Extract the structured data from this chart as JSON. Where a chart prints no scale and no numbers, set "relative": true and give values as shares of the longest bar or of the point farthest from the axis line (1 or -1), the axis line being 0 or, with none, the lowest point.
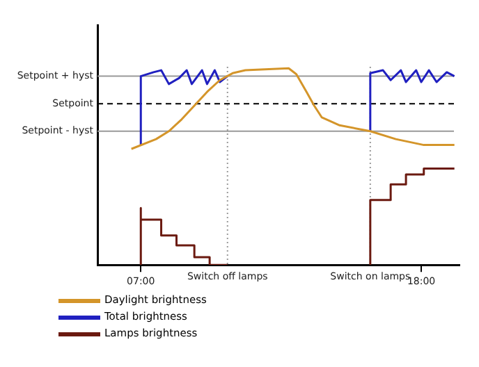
{
  "chart_data": {
    "type": "line",
    "relative": true,
    "grid": false,
    "marker": "none",
    "line_style": "solid",
    "legend": "bottom left",
    "xlim": [
      5.3,
      19.5
    ],
    "xticks": [
      {
        "value": 7,
        "label": "07:00"
      },
      {
        "value": 18,
        "label": "18:00"
      }
    ],
    "series": [
      {
        "name": "Daylight brightness",
        "color": "#d4952a",
        "x": [
          6.63,
          7.6,
          8.1,
          8.6,
          9.1,
          9.6,
          10.1,
          10.6,
          11.1,
          12.8,
          13.1,
          13.5,
          13.8,
          14.1,
          14.8,
          16.0,
          17.0,
          18.1,
          19.3
        ],
        "values": [
          0.59,
          0.64,
          0.68,
          0.74,
          0.81,
          0.88,
          0.94,
          0.975,
          0.99,
          1.0,
          0.97,
          0.88,
          0.81,
          0.75,
          0.71,
          0.68,
          0.64,
          0.61,
          0.61
        ]
      },
      {
        "name": "Total brightness",
        "color": "#2020c0",
        "x": [
          7.0,
          7.0,
          7.5,
          7.8,
          8.1,
          8.5,
          8.8,
          9.0,
          9.4,
          9.6,
          9.9,
          10.1,
          10.4,
          13.0,
          16.0,
          16.0,
          16.5,
          16.8,
          17.2,
          17.4,
          17.8,
          18.0,
          18.3,
          18.6,
          19.0,
          19.3
        ],
        "values": [
          0.61,
          0.96,
          0.98,
          0.99,
          0.92,
          0.95,
          0.99,
          0.92,
          0.99,
          0.92,
          0.99,
          0.93,
          0.96,
          null,
          0.68,
          0.975,
          0.99,
          0.94,
          0.99,
          0.93,
          0.99,
          0.93,
          0.99,
          0.93,
          0.98,
          0.96
        ]
      },
      {
        "name": "Lamps brightness",
        "type": "step",
        "color": "#6b1a10",
        "x": [
          7.0,
          7.0,
          7.8,
          8.4,
          9.1,
          9.7,
          10.4,
          13.0,
          16.0,
          16.0,
          16.8,
          17.4,
          18.1,
          18.7,
          19.3
        ],
        "values": [
          0,
          0.29,
          0.23,
          0.15,
          0.1,
          0.04,
          0,
          null,
          0,
          0.27,
          0.33,
          0.41,
          0.46,
          0.49,
          0.49
        ]
      }
    ],
    "ref_lines": [
      {
        "axis": "y",
        "value": 0.96,
        "label": "Setpoint + hyst",
        "color": "#999999",
        "line_style": "solid"
      },
      {
        "axis": "y",
        "value": 0.82,
        "label": "Setpoint",
        "color": "#000000",
        "line_style": "dashed"
      },
      {
        "axis": "y",
        "value": 0.68,
        "label": "Setpoint - hyst",
        "color": "#999999",
        "line_style": "solid"
      },
      {
        "axis": "x",
        "value": 10.4,
        "label": "Switch off lamps",
        "color": "#999999",
        "line_style": "dotted"
      },
      {
        "axis": "x",
        "value": 16.0,
        "label": "Switch on lamps",
        "color": "#999999",
        "line_style": "dotted"
      }
    ]
  }
}
